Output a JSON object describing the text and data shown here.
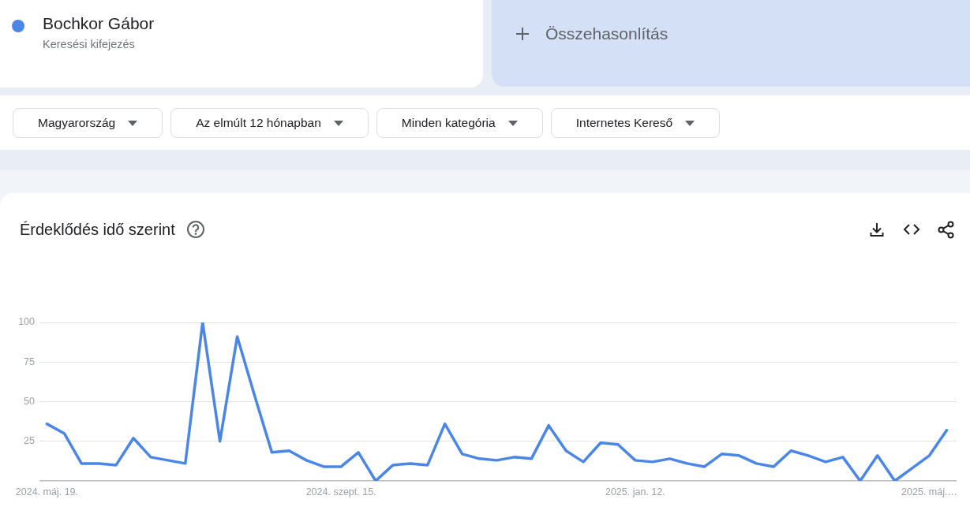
{
  "chart_data": {
    "type": "line",
    "title": "Érdeklődés idő szerint",
    "annotations": [
      "Keresési kifejezés",
      "Összehasonlítás",
      "Magyarország",
      "Az elmúlt 12 hónapban",
      "Minden kategória",
      "Internetes Kereső"
    ],
    "x": [
      "2024-05-19",
      "2024-05-26",
      "2024-06-02",
      "2024-06-09",
      "2024-06-16",
      "2024-06-23",
      "2024-06-30",
      "2024-07-07",
      "2024-07-14",
      "2024-07-21",
      "2024-07-28",
      "2024-08-04",
      "2024-08-11",
      "2024-08-18",
      "2024-08-25",
      "2024-09-01",
      "2024-09-08",
      "2024-09-15",
      "2024-09-22",
      "2024-09-29",
      "2024-10-06",
      "2024-10-13",
      "2024-10-20",
      "2024-10-27",
      "2024-11-03",
      "2024-11-10",
      "2024-11-17",
      "2024-11-24",
      "2024-12-01",
      "2024-12-08",
      "2024-12-15",
      "2024-12-22",
      "2024-12-29",
      "2025-01-05",
      "2025-01-12",
      "2025-01-19",
      "2025-01-26",
      "2025-02-02",
      "2025-02-09",
      "2025-02-16",
      "2025-02-23",
      "2025-03-02",
      "2025-03-09",
      "2025-03-16",
      "2025-03-23",
      "2025-03-30",
      "2025-04-06",
      "2025-04-13",
      "2025-04-20",
      "2025-04-27",
      "2025-05-04",
      "2025-05-11",
      "2025-05-18"
    ],
    "series": [
      {
        "name": "Bochkor Gábor",
        "color": "#4a86e8",
        "values": [
          36,
          30,
          11,
          11,
          10,
          27,
          15,
          13,
          11,
          100,
          25,
          91,
          54,
          18,
          19,
          13,
          9,
          9,
          18,
          0,
          10,
          11,
          10,
          36,
          17,
          14,
          13,
          15,
          14,
          35,
          19,
          12,
          24,
          23,
          13,
          12,
          14,
          11,
          9,
          17,
          16,
          11,
          9,
          19,
          16,
          12,
          15,
          0,
          16,
          0,
          8,
          16,
          32
        ]
      }
    ],
    "xlim": [
      "2024-05-16",
      "2025-05-22"
    ],
    "xticks": [
      {
        "value": "2024-05-19",
        "label": "2024. máj. 19."
      },
      {
        "value": "2024-09-15",
        "label": "2024. szept. 15."
      },
      {
        "value": "2025-01-12",
        "label": "2025. jan. 12."
      },
      {
        "value": "2025-05-11",
        "label": "2025. máj.…"
      }
    ],
    "ylim": [
      0,
      100
    ],
    "yticks": [
      {
        "value": 0,
        "label": null
      },
      25,
      50,
      75,
      100
    ],
    "grid": "y",
    "legend": "top left"
  }
}
